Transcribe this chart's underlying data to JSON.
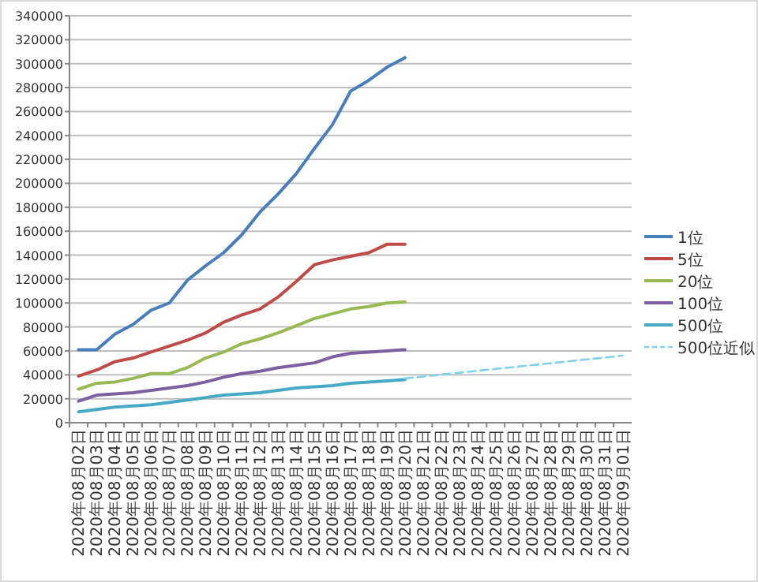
{
  "chart_data": {
    "type": "line",
    "categories": [
      "2020年08月02日",
      "2020年08月03日",
      "2020年08月04日",
      "2020年08月05日",
      "2020年08月06日",
      "2020年08月07日",
      "2020年08月08日",
      "2020年08月09日",
      "2020年08月10日",
      "2020年08月11日",
      "2020年08月12日",
      "2020年08月13日",
      "2020年08月14日",
      "2020年08月15日",
      "2020年08月16日",
      "2020年08月17日",
      "2020年08月18日",
      "2020年08月19日",
      "2020年08月20日",
      "2020年08月21日",
      "2020年08月22日",
      "2020年08月23日",
      "2020年08月24日",
      "2020年08月25日",
      "2020年08月26日",
      "2020年08月27日",
      "2020年08月28日",
      "2020年08月29日",
      "2020年08月30日",
      "2020年08月31日",
      "2020年09月01日"
    ],
    "series": [
      {
        "name": "1位",
        "color": "#4a7ebb",
        "values": [
          61000,
          61000,
          74000,
          82000,
          94000,
          100000,
          119000,
          131000,
          142000,
          157000,
          176000,
          191000,
          208000,
          229000,
          249000,
          277000,
          286000,
          297000,
          305000,
          null,
          null,
          null,
          null,
          null,
          null,
          null,
          null,
          null,
          null,
          null,
          null
        ]
      },
      {
        "name": "5位",
        "color": "#be4b48",
        "values": [
          39000,
          44000,
          51000,
          54000,
          59000,
          64000,
          69000,
          75000,
          84000,
          90000,
          95000,
          105000,
          118000,
          132000,
          136000,
          139000,
          142000,
          149000,
          149000,
          null,
          null,
          null,
          null,
          null,
          null,
          null,
          null,
          null,
          null,
          null,
          null
        ]
      },
      {
        "name": "20位",
        "color": "#98b954",
        "values": [
          28000,
          33000,
          34000,
          37000,
          41000,
          41000,
          46000,
          54000,
          59000,
          66000,
          70000,
          75000,
          81000,
          87000,
          91000,
          95000,
          97000,
          100000,
          101000,
          null,
          null,
          null,
          null,
          null,
          null,
          null,
          null,
          null,
          null,
          null,
          null
        ]
      },
      {
        "name": "100位",
        "color": "#7d60a0",
        "values": [
          18000,
          23000,
          24000,
          25000,
          27000,
          29000,
          31000,
          34000,
          38000,
          41000,
          43000,
          46000,
          48000,
          50000,
          55000,
          58000,
          59000,
          60000,
          61000,
          null,
          null,
          null,
          null,
          null,
          null,
          null,
          null,
          null,
          null,
          null,
          null
        ]
      },
      {
        "name": "500位",
        "color": "#46aac5",
        "values": [
          9000,
          11000,
          13000,
          14000,
          15000,
          17000,
          19000,
          21000,
          23000,
          24000,
          25000,
          27000,
          29000,
          30000,
          31000,
          33000,
          34000,
          35000,
          36000,
          null,
          null,
          null,
          null,
          null,
          null,
          null,
          null,
          null,
          null,
          null,
          null
        ]
      },
      {
        "name": "500位近似",
        "color": "#7fd0ea",
        "line_style": "dashed",
        "x": [
          "2020年08月20日",
          "2020年09月01日"
        ],
        "values": [
          37000,
          56000
        ]
      }
    ],
    "ylim": [
      0,
      340000
    ],
    "yticks": [
      0,
      20000,
      40000,
      60000,
      80000,
      100000,
      120000,
      140000,
      160000,
      180000,
      200000,
      220000,
      240000,
      260000,
      280000,
      300000,
      320000,
      340000
    ],
    "grid": "y",
    "legend": "right",
    "marker": "none",
    "line_style": "solid"
  }
}
